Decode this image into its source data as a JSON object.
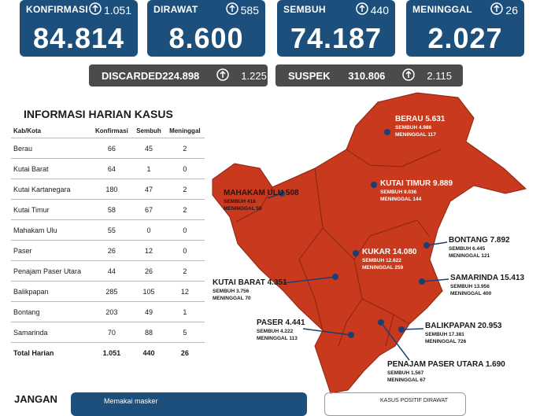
{
  "stats": [
    {
      "label": "KONFIRMASI",
      "change": "1.051",
      "value": "84.814"
    },
    {
      "label": "DIRAWAT",
      "change": "585",
      "value": "8.600"
    },
    {
      "label": "SEMBUH",
      "change": "440",
      "value": "74.187"
    },
    {
      "label": "MENINGGAL",
      "change": "26",
      "value": "2.027"
    }
  ],
  "secondary": [
    {
      "label": "DISCARDED",
      "value": "224.898",
      "change": "1.225"
    },
    {
      "label": "SUSPEK",
      "value": "310.806",
      "change": "2.115"
    }
  ],
  "table": {
    "title": "INFORMASI HARIAN KASUS",
    "headers": [
      "Kab/Kota",
      "Konfirmasi",
      "Sembuh",
      "Meninggal"
    ],
    "rows": [
      [
        "Berau",
        "66",
        "45",
        "2"
      ],
      [
        "Kutai Barat",
        "64",
        "1",
        "0"
      ],
      [
        "Kutai Kartanegara",
        "180",
        "47",
        "2"
      ],
      [
        "Kutai Timur",
        "58",
        "67",
        "2"
      ],
      [
        "Mahakam Ulu",
        "55",
        "0",
        "0"
      ],
      [
        "Paser",
        "26",
        "12",
        "0"
      ],
      [
        "Penajam Paser Utara",
        "44",
        "26",
        "2"
      ],
      [
        "Balikpapan",
        "285",
        "105",
        "12"
      ],
      [
        "Bontang",
        "203",
        "49",
        "1"
      ],
      [
        "Samarinda",
        "70",
        "88",
        "5"
      ]
    ],
    "total": [
      "Total Harian",
      "1.051",
      "440",
      "26"
    ]
  },
  "map": {
    "sembuh_label": "SEMBUH",
    "meninggal_label": "MENINGGAL",
    "regions": [
      {
        "name": "BERAU",
        "total": "5.631",
        "sembuh": "4.986",
        "meninggal": "117"
      },
      {
        "name": "KUTAI TIMUR",
        "total": "9.889",
        "sembuh": "9.036",
        "meninggal": "144"
      },
      {
        "name": "MAHAKAM ULU",
        "total": "508",
        "sembuh": "416",
        "meninggal": "50"
      },
      {
        "name": "KUKAR",
        "total": "14.080",
        "sembuh": "12.622",
        "meninggal": "259"
      },
      {
        "name": "BONTANG",
        "total": "7.892",
        "sembuh": "6.445",
        "meninggal": "121"
      },
      {
        "name": "KUTAI BARAT",
        "total": "4.351",
        "sembuh": "3.756",
        "meninggal": "70"
      },
      {
        "name": "SAMARINDA",
        "total": "15.413",
        "sembuh": "13.956",
        "meninggal": "400"
      },
      {
        "name": "PASER",
        "total": "4.441",
        "sembuh": "4.222",
        "meninggal": "113"
      },
      {
        "name": "BALIKPAPAN",
        "total": "20.953",
        "sembuh": "17.381",
        "meninggal": "726"
      },
      {
        "name": "PENAJAM PASER UTARA",
        "total": "1.690",
        "sembuh": "1.567",
        "meninggal": "67"
      }
    ]
  },
  "footer": {
    "heading": "JANGAN",
    "banner": "Memakai masker",
    "right_box": "KASUS POSITIF DIRAWAT"
  }
}
